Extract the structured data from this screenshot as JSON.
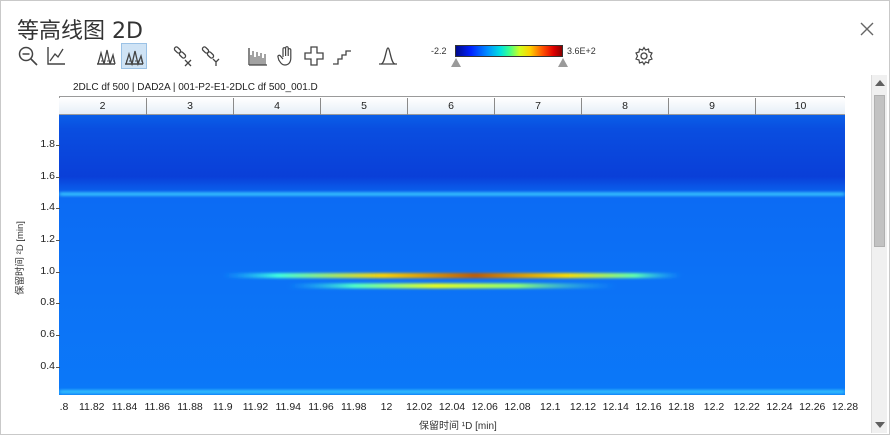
{
  "window": {
    "title": "等高线图 2D"
  },
  "toolbar": {
    "icons": [
      "zoom-out-icon",
      "axis-chart-icon",
      "peaks-icon",
      "peaks-selected-icon",
      "link-x-icon",
      "link-y-icon",
      "spectrum-icon",
      "hand-icon",
      "cross-icon",
      "step-icon",
      "peak-shape-icon",
      "settings-icon"
    ]
  },
  "colorbar": {
    "min_label": "-2.2",
    "max_label": "3.6E+2",
    "min": -2.2,
    "max": 360
  },
  "plot": {
    "file_label": "2DLC df 500 | DAD2A | 001-P2-E1-2DLC df 500_001.D",
    "segments": [
      "2",
      "3",
      "4",
      "5",
      "6",
      "7",
      "8",
      "9",
      "10"
    ]
  },
  "chart_data": {
    "type": "heatmap",
    "xlabel": "保留时间 ¹D [min]",
    "ylabel": "保留时间 ²D [min]",
    "x_ticks": [
      ".8",
      "11.82",
      "11.84",
      "11.86",
      "11.88",
      "11.9",
      "11.92",
      "11.94",
      "11.96",
      "11.98",
      "12",
      "12.02",
      "12.04",
      "12.06",
      "12.08",
      "12.1",
      "12.12",
      "12.14",
      "12.16",
      "12.18",
      "12.2",
      "12.22",
      "12.24",
      "12.26",
      "12.28"
    ],
    "y_ticks": [
      "1.8",
      "1.6",
      "1.4",
      "1.2",
      "1.0",
      "0.8",
      "0.6",
      "0.4"
    ],
    "xlim": [
      11.8,
      12.28
    ],
    "ylim": [
      0.22,
      1.99
    ],
    "bands": [
      {
        "y": 1.49,
        "intensity": 60,
        "x_range": [
          11.8,
          12.28
        ]
      },
      {
        "y": 0.975,
        "intensity": 330,
        "x_range": [
          11.9,
          12.18
        ]
      },
      {
        "y": 0.91,
        "intensity": 170,
        "x_range": [
          11.94,
          12.14
        ]
      },
      {
        "y": 0.24,
        "intensity": 55,
        "x_range": [
          11.8,
          12.28
        ]
      }
    ]
  }
}
